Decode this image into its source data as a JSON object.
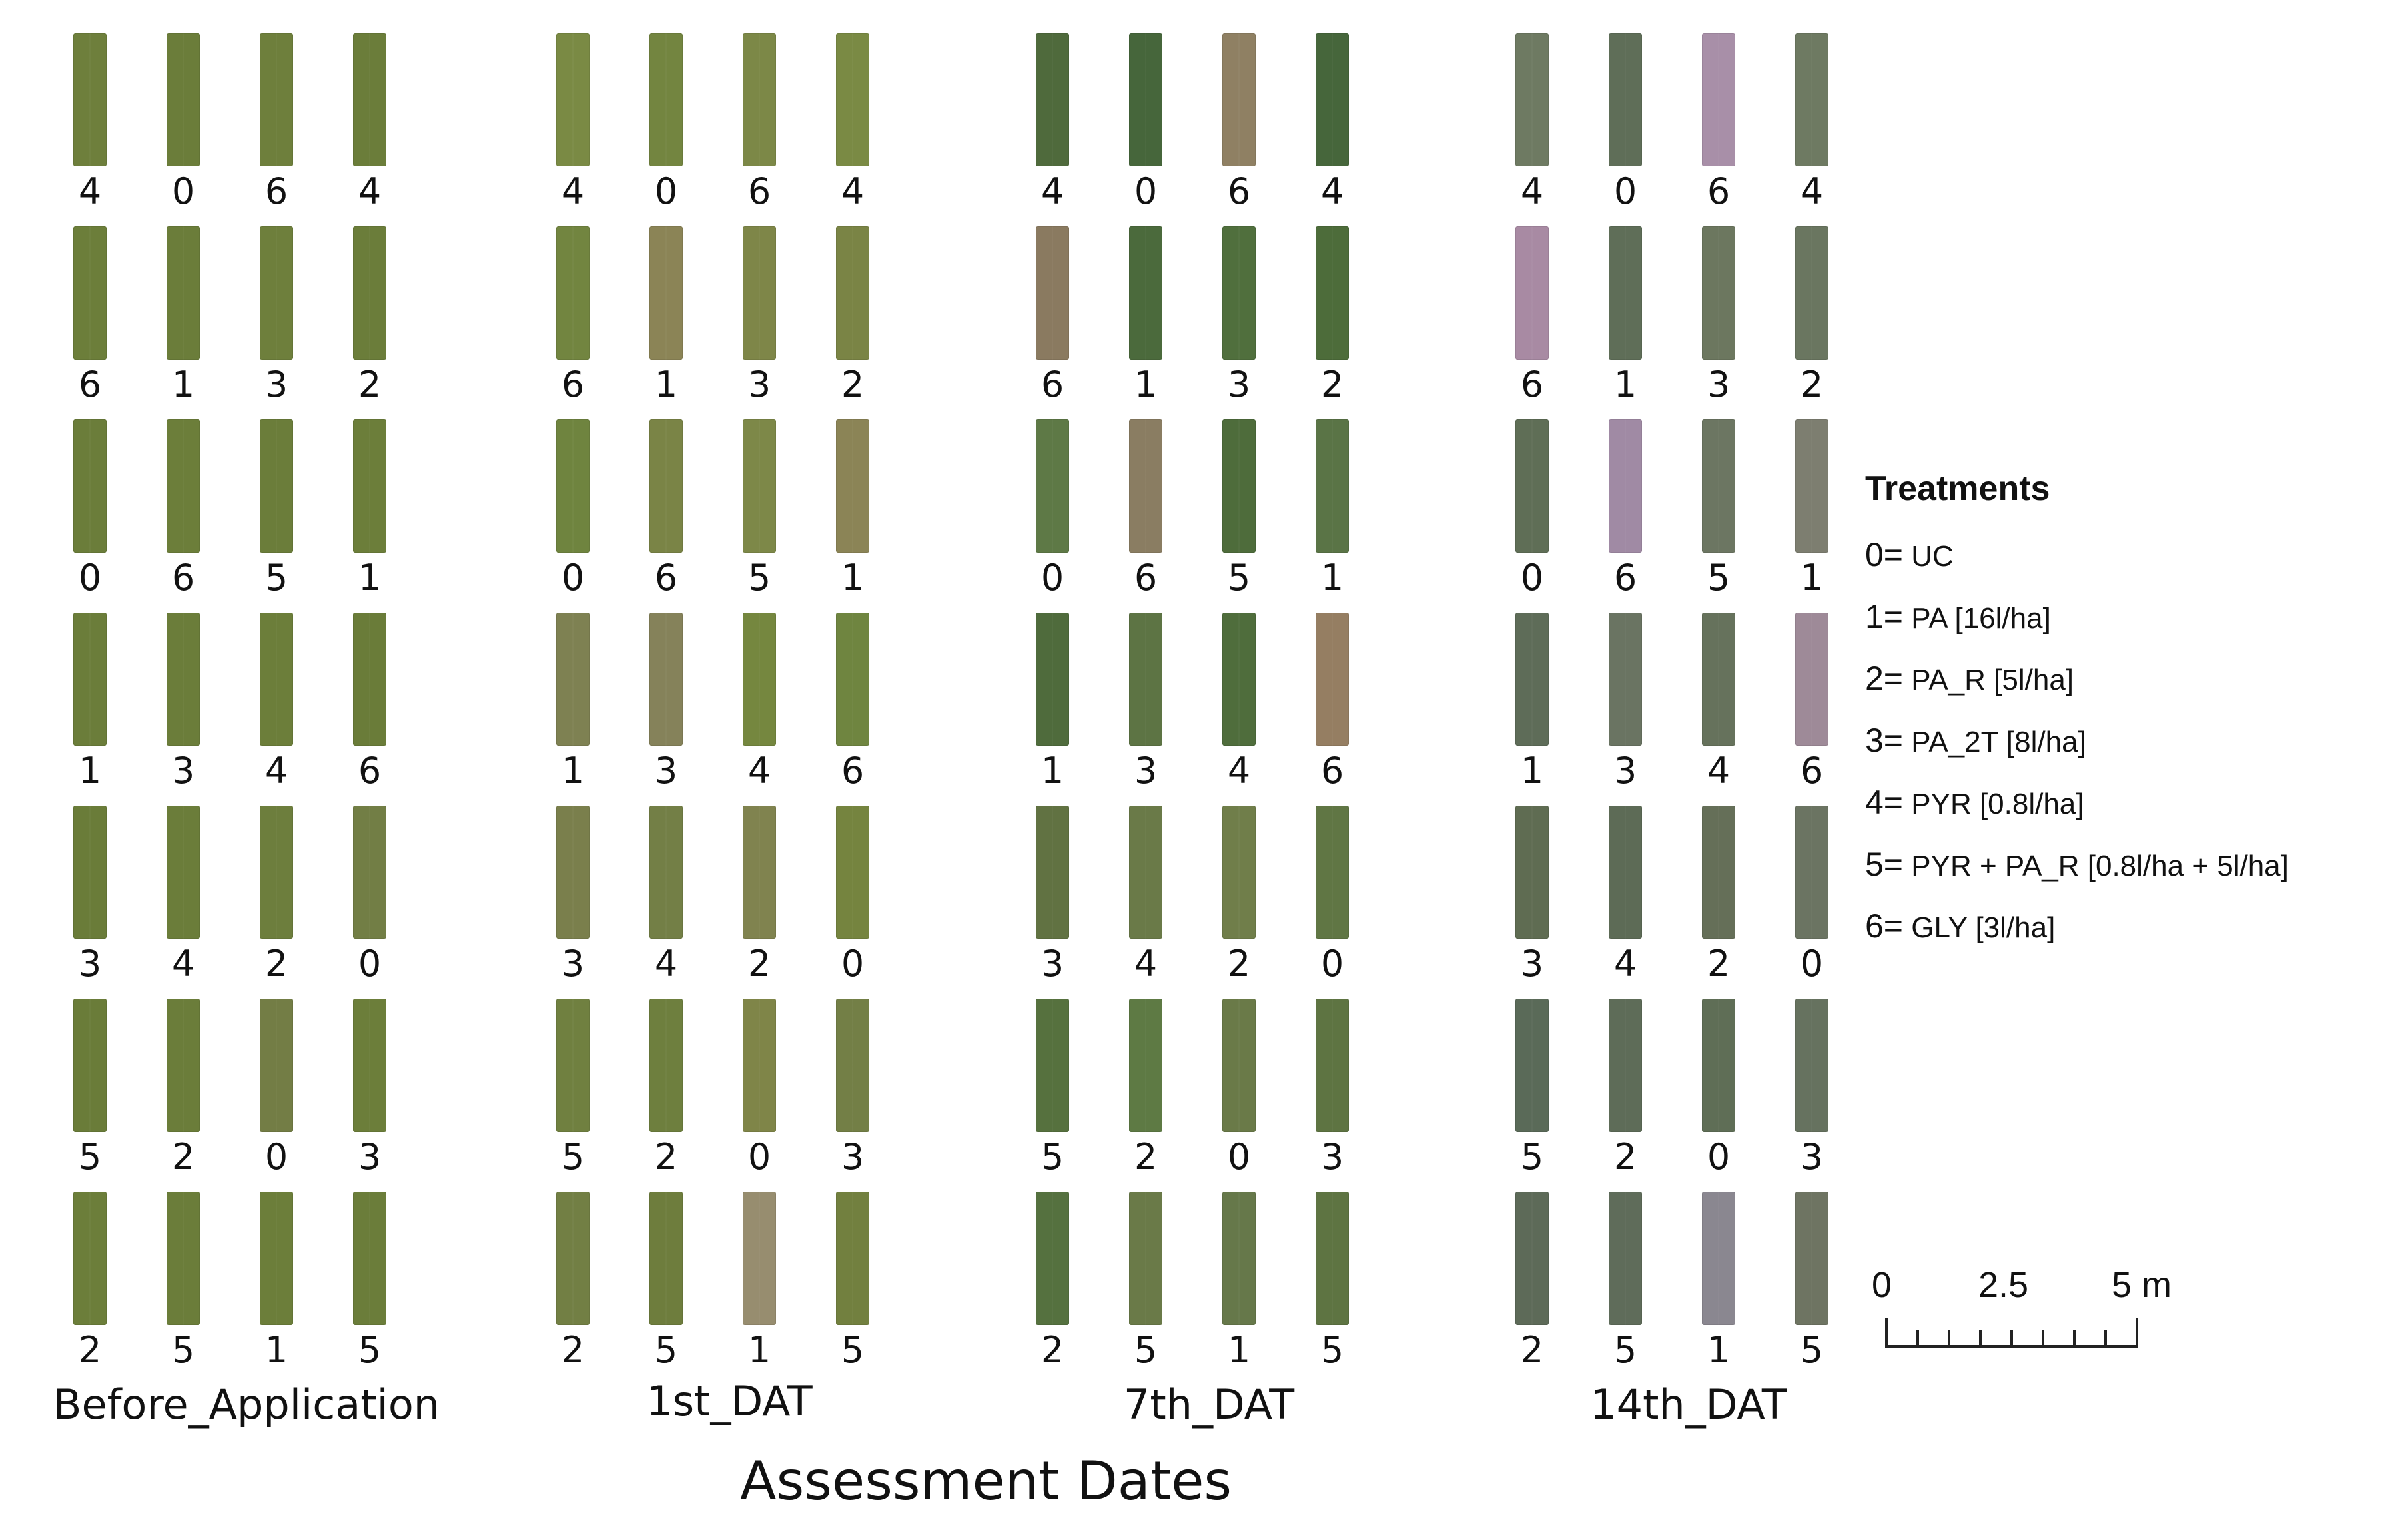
{
  "figure": {
    "axis_title": "Assessment Dates",
    "panels": [
      {
        "label": "Before_Application",
        "rows": [
          [
            "4",
            "0",
            "6",
            "4"
          ],
          [
            "6",
            "1",
            "3",
            "2"
          ],
          [
            "0",
            "6",
            "5",
            "1"
          ],
          [
            "1",
            "3",
            "4",
            "6"
          ],
          [
            "3",
            "4",
            "2",
            "0"
          ],
          [
            "5",
            "2",
            "0",
            "3"
          ],
          [
            "2",
            "5",
            "1",
            "5"
          ]
        ],
        "plot_colors": [
          [
            "#6e7f3c",
            "#6b7d3a",
            "#6e7f3c",
            "#6b7d3a"
          ],
          [
            "#6c7e3a",
            "#6b7d3a",
            "#6e7f3c",
            "#6b7d3a"
          ],
          [
            "#6b7d3a",
            "#6c7e3a",
            "#6b7d3a",
            "#6c7e3a"
          ],
          [
            "#6b7d3a",
            "#6b7d3a",
            "#6c7e3a",
            "#6a7c39"
          ],
          [
            "#6a7c39",
            "#6b7d3a",
            "#6d7e3d",
            "#727e45"
          ],
          [
            "#6a7c39",
            "#6b7d3a",
            "#737d45",
            "#6c7e3a"
          ],
          [
            "#6c7e3a",
            "#6b7d3a",
            "#6c7e3a",
            "#6b7d3a"
          ]
        ]
      },
      {
        "label": "1st_DAT",
        "rows": [
          [
            "4",
            "0",
            "6",
            "4"
          ],
          [
            "6",
            "1",
            "3",
            "2"
          ],
          [
            "0",
            "6",
            "5",
            "1"
          ],
          [
            "1",
            "3",
            "4",
            "6"
          ],
          [
            "3",
            "4",
            "2",
            "0"
          ],
          [
            "5",
            "2",
            "0",
            "3"
          ],
          [
            "2",
            "5",
            "1",
            "5"
          ]
        ],
        "plot_colors": [
          [
            "#7a8a44",
            "#738540",
            "#7c8847",
            "#7a8a44"
          ],
          [
            "#728540",
            "#8b8456",
            "#7e8648",
            "#7a8445"
          ],
          [
            "#6f843f",
            "#7a8446",
            "#7d8848",
            "#8b8456"
          ],
          [
            "#7e8152",
            "#85825a",
            "#75873f",
            "#6f8540"
          ],
          [
            "#7a7f4c",
            "#737f46",
            "#80834f",
            "#75843f"
          ],
          [
            "#708040",
            "#6e7f3e",
            "#7f8548",
            "#737f46"
          ],
          [
            "#727f44",
            "#6e7d3d",
            "#978d6f",
            "#72803f"
          ]
        ]
      },
      {
        "label": "7th_DAT",
        "rows": [
          [
            "4",
            "0",
            "6",
            "4"
          ],
          [
            "6",
            "1",
            "3",
            "2"
          ],
          [
            "0",
            "6",
            "5",
            "1"
          ],
          [
            "1",
            "3",
            "4",
            "6"
          ],
          [
            "3",
            "4",
            "2",
            "0"
          ],
          [
            "5",
            "2",
            "0",
            "3"
          ],
          [
            "2",
            "5",
            "1",
            "5"
          ]
        ],
        "plot_colors": [
          [
            "#4f6a3c",
            "#46663b",
            "#8f8063",
            "#46663b"
          ],
          [
            "#8a7a60",
            "#4b6a3c",
            "#506f3d",
            "#4d6c3a"
          ],
          [
            "#5e7946",
            "#8a7d62",
            "#4e6c3b",
            "#5a7446"
          ],
          [
            "#4f6b3c",
            "#5d7444",
            "#4f6d3c",
            "#957e62"
          ],
          [
            "#617242",
            "#6a7a48",
            "#707e4a",
            "#607644"
          ],
          [
            "#56713e",
            "#5e7a44",
            "#6a7a48",
            "#5e7442"
          ],
          [
            "#55713f",
            "#6a7a48",
            "#66784a",
            "#5e7442"
          ]
        ]
      },
      {
        "label": "14th_DAT",
        "rows": [
          [
            "4",
            "0",
            "6",
            "4"
          ],
          [
            "6",
            "1",
            "3",
            "2"
          ],
          [
            "0",
            "6",
            "5",
            "1"
          ],
          [
            "1",
            "3",
            "4",
            "6"
          ],
          [
            "3",
            "4",
            "2",
            "0"
          ],
          [
            "5",
            "2",
            "0",
            "3"
          ],
          [
            "2",
            "5",
            "1",
            "5"
          ]
        ],
        "plot_colors": [
          [
            "#6e7a62",
            "#5f6e58",
            "#a88fa8",
            "#6e7a62"
          ],
          [
            "#a88aa3",
            "#5f6e58",
            "#6c775f",
            "#6a7660"
          ],
          [
            "#5f6e56",
            "#a08aa4",
            "#6c7662",
            "#7d7e70"
          ],
          [
            "#5e6c58",
            "#6a7462",
            "#66725c",
            "#9e8a98"
          ],
          [
            "#5f6c52",
            "#5d6b56",
            "#656f58",
            "#6b7462"
          ],
          [
            "#5a6a58",
            "#5e6c58",
            "#5f6e56",
            "#66725f"
          ],
          [
            "#5d6a58",
            "#5f6c5a",
            "#8a8790",
            "#6e7462"
          ]
        ]
      }
    ],
    "legend": {
      "title": "Treatments",
      "items": [
        {
          "key": "0=",
          "text": "UC"
        },
        {
          "key": "1=",
          "text": "PA [16l/ha]"
        },
        {
          "key": "2=",
          "text": "PA_R [5l/ha]"
        },
        {
          "key": "3=",
          "text": "PA_2T [8l/ha]"
        },
        {
          "key": "4=",
          "text": "PYR [0.8l/ha]"
        },
        {
          "key": "5=",
          "text": "PYR + PA_R [0.8l/ha + 5l/ha]"
        },
        {
          "key": "6=",
          "text": "GLY [3l/ha]"
        }
      ]
    },
    "scale_bar": {
      "labels": [
        "0",
        "2.5",
        "5 m"
      ]
    }
  }
}
